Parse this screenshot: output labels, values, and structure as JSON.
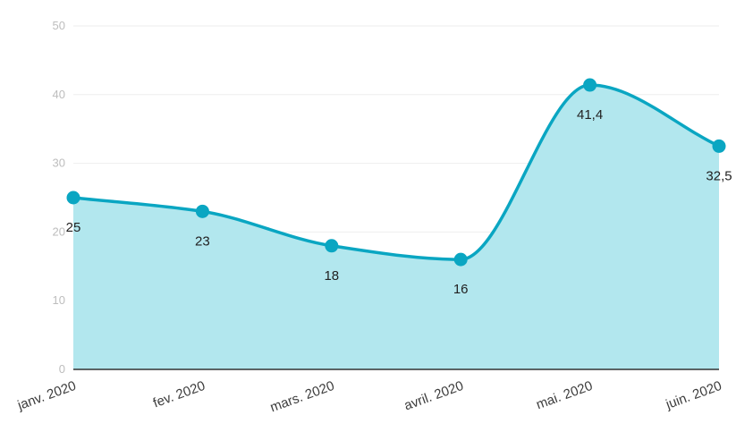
{
  "chart_data": {
    "type": "area",
    "categories": [
      "janv. 2020",
      "fev. 2020",
      "mars. 2020",
      "avril. 2020",
      "mai. 2020",
      "juin. 2020"
    ],
    "series": [
      {
        "values": [
          25,
          23,
          18,
          16,
          41.4,
          32.5
        ]
      }
    ],
    "data_labels": [
      "25",
      "23",
      "18",
      "16",
      "41,4",
      "32,5"
    ],
    "y_ticks": [
      "0",
      "10",
      "20",
      "30",
      "40",
      "50"
    ],
    "ylim": [
      0,
      50
    ],
    "grid": true,
    "colors": {
      "line": "#0aa6c2",
      "fill": "#b2e7ee",
      "grid": "#eeeeee",
      "axis": "#333333"
    }
  }
}
